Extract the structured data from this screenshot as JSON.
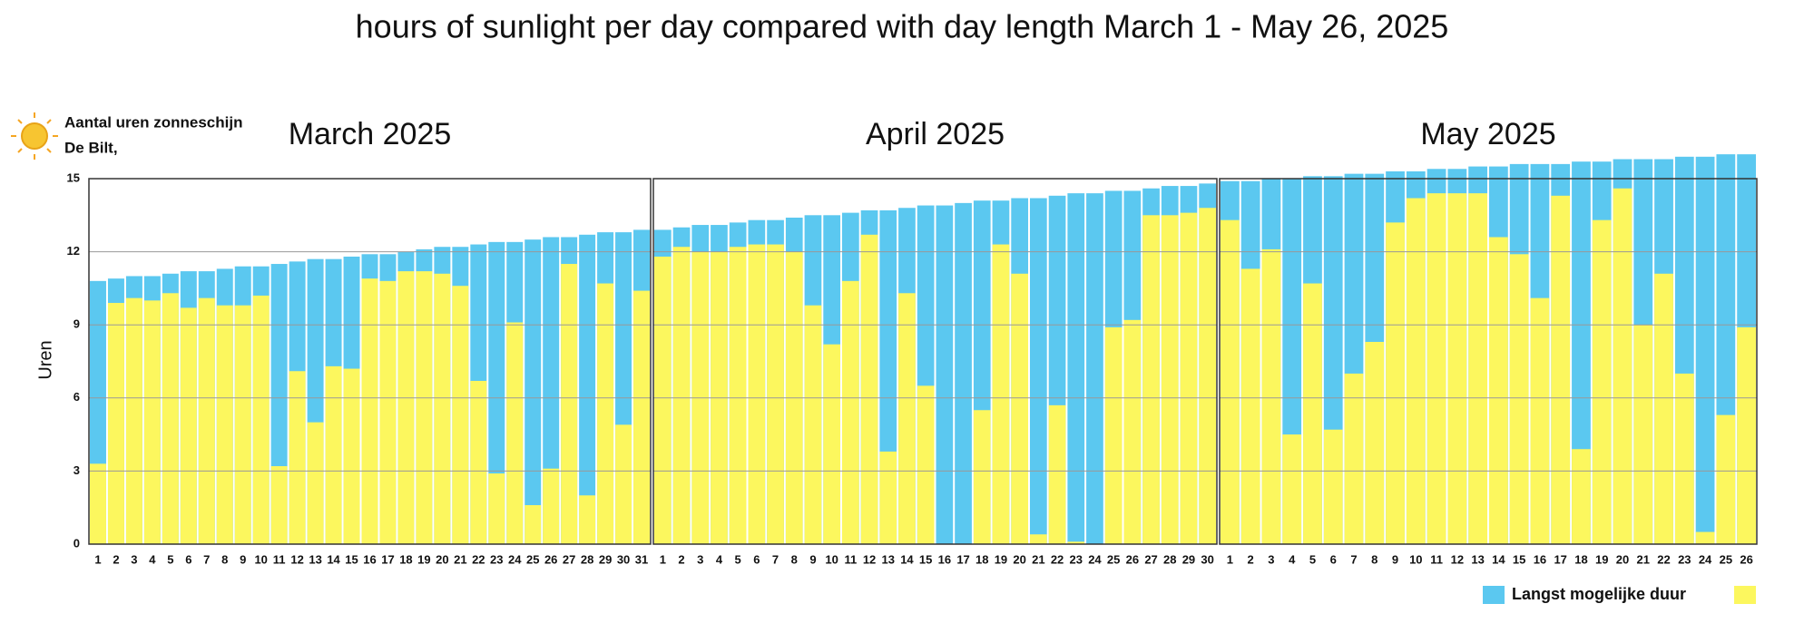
{
  "title": "hours of sunlight per day compared with day length March 1 - May 26, 2025",
  "header": {
    "line1": "Aantal uren zonneschijn",
    "line2": "De Bilt,"
  },
  "y_label": "Uren",
  "chart_data": [
    {
      "type": "bar",
      "title": "March 2025",
      "categories": [
        "1",
        "2",
        "3",
        "4",
        "5",
        "6",
        "7",
        "8",
        "9",
        "10",
        "11",
        "12",
        "13",
        "14",
        "15",
        "16",
        "17",
        "18",
        "19",
        "20",
        "21",
        "22",
        "23",
        "24",
        "25",
        "26",
        "27",
        "28",
        "29",
        "30",
        "31"
      ],
      "series": [
        {
          "color": "#5bc8f0",
          "values": [
            10.8,
            10.9,
            11.0,
            11.0,
            11.1,
            11.2,
            11.2,
            11.3,
            11.4,
            11.4,
            11.5,
            11.6,
            11.7,
            11.7,
            11.8,
            11.9,
            11.9,
            12.0,
            12.1,
            12.2,
            12.2,
            12.3,
            12.4,
            12.4,
            12.5,
            12.6,
            12.6,
            12.7,
            12.8,
            12.8,
            12.9
          ]
        },
        {
          "color": "#fcf75e",
          "values": [
            3.3,
            9.9,
            10.1,
            10.0,
            10.3,
            9.7,
            10.1,
            9.8,
            9.8,
            10.2,
            3.2,
            7.1,
            5.0,
            7.3,
            7.2,
            10.9,
            10.8,
            11.2,
            11.2,
            11.1,
            10.6,
            6.7,
            2.9,
            9.1,
            1.6,
            3.1,
            11.5,
            2.0,
            10.7,
            4.9,
            10.4
          ]
        }
      ],
      "ylim": [
        0,
        15
      ],
      "yticks": [
        0,
        3,
        6,
        9,
        12,
        15
      ],
      "grid": true
    },
    {
      "type": "bar",
      "title": "April 2025",
      "categories": [
        "1",
        "2",
        "3",
        "4",
        "5",
        "6",
        "7",
        "8",
        "9",
        "10",
        "11",
        "12",
        "13",
        "14",
        "15",
        "16",
        "17",
        "18",
        "19",
        "20",
        "21",
        "22",
        "23",
        "24",
        "25",
        "26",
        "27",
        "28",
        "29",
        "30"
      ],
      "series": [
        {
          "color": "#5bc8f0",
          "values": [
            12.9,
            13.0,
            13.1,
            13.1,
            13.2,
            13.3,
            13.3,
            13.4,
            13.5,
            13.5,
            13.6,
            13.7,
            13.7,
            13.8,
            13.9,
            13.9,
            14.0,
            14.1,
            14.1,
            14.2,
            14.2,
            14.3,
            14.4,
            14.4,
            14.5,
            14.5,
            14.6,
            14.7,
            14.7,
            14.8
          ]
        },
        {
          "color": "#fcf75e",
          "values": [
            11.8,
            12.2,
            12.0,
            12.0,
            12.2,
            12.3,
            12.3,
            12.0,
            9.8,
            8.2,
            10.8,
            12.7,
            3.8,
            10.3,
            6.5,
            0,
            0,
            5.5,
            12.3,
            11.1,
            0.4,
            5.7,
            0.1,
            0,
            8.9,
            9.2,
            13.5,
            13.5,
            13.6,
            13.8
          ]
        }
      ],
      "ylim": [
        0,
        15
      ],
      "yticks": [
        0,
        3,
        6,
        9,
        12,
        15
      ],
      "grid": true
    },
    {
      "type": "bar",
      "title": "May 2025",
      "categories": [
        "1",
        "2",
        "3",
        "4",
        "5",
        "6",
        "7",
        "8",
        "9",
        "10",
        "11",
        "12",
        "13",
        "14",
        "15",
        "16",
        "17",
        "18",
        "19",
        "20",
        "21",
        "22",
        "23",
        "24",
        "25",
        "26"
      ],
      "series": [
        {
          "name": "Langst mogelijke duur",
          "color": "#5bc8f0",
          "values": [
            14.9,
            14.9,
            15.0,
            15.0,
            15.1,
            15.1,
            15.2,
            15.2,
            15.3,
            15.3,
            15.4,
            15.4,
            15.5,
            15.5,
            15.6,
            15.6,
            15.6,
            15.7,
            15.7,
            15.8,
            15.8,
            15.8,
            15.9,
            15.9,
            16.0,
            16.0
          ]
        },
        {
          "color": "#fcf75e",
          "values": [
            13.3,
            11.3,
            12.1,
            4.5,
            10.7,
            4.7,
            7.0,
            8.3,
            13.2,
            14.2,
            14.4,
            14.4,
            14.4,
            12.6,
            11.9,
            10.1,
            14.3,
            3.9,
            13.3,
            14.6,
            9.0,
            11.1,
            7.0,
            0.5,
            5.3,
            8.9
          ]
        }
      ],
      "ylim": [
        0,
        15
      ],
      "yticks": [
        0,
        3,
        6,
        9,
        12,
        15
      ],
      "grid": true
    }
  ]
}
